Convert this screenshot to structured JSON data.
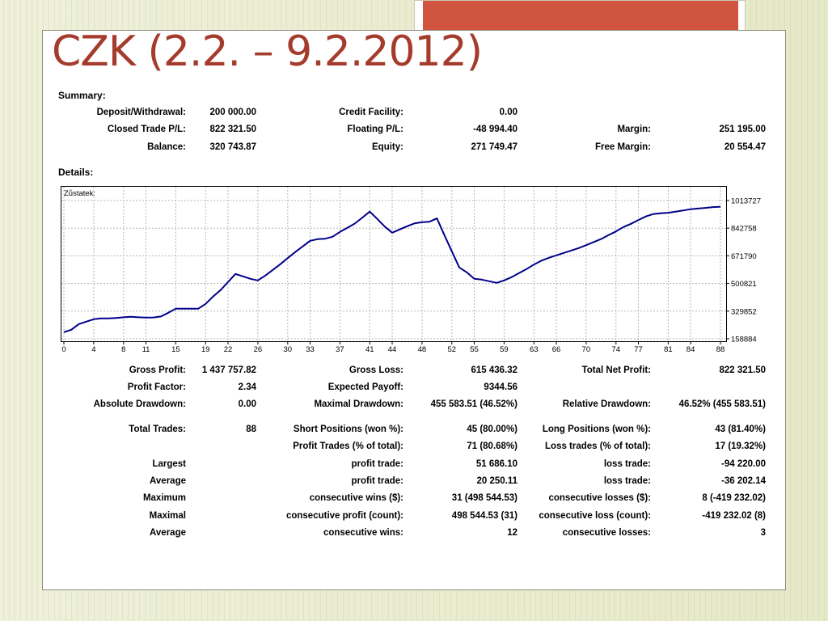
{
  "slide": {
    "title": "CZK (2.2. – 9.2.2012)",
    "accent_color": "#d05440",
    "title_color": "#a53b2c"
  },
  "summary": {
    "heading": "Summary:",
    "rows": [
      [
        {
          "label": "Deposit/Withdrawal:",
          "value": "200 000.00"
        },
        {
          "label": "Credit Facility:",
          "value": "0.00"
        },
        {
          "label": "",
          "value": ""
        }
      ],
      [
        {
          "label": "Closed Trade P/L:",
          "value": "822 321.50"
        },
        {
          "label": "Floating P/L:",
          "value": "-48 994.40"
        },
        {
          "label": "Margin:",
          "value": "251 195.00"
        }
      ],
      [
        {
          "label": "Balance:",
          "value": "320 743.87"
        },
        {
          "label": "Equity:",
          "value": "271 749.47"
        },
        {
          "label": "Free Margin:",
          "value": "20 554.47"
        }
      ]
    ]
  },
  "details_heading": "Details:",
  "chart_data": {
    "type": "line",
    "title": "Zůstatek:",
    "line_color": "#00008b",
    "grid": true,
    "y_ticks": [
      1013727,
      842758,
      671790,
      500821,
      329852,
      158884
    ],
    "x_ticks": [
      0,
      4,
      8,
      11,
      15,
      19,
      22,
      26,
      30,
      33,
      37,
      41,
      44,
      48,
      52,
      55,
      59,
      63,
      66,
      70,
      74,
      77,
      81,
      84,
      88
    ],
    "xlim": [
      0,
      88
    ],
    "ylim": [
      158884,
      1013727
    ],
    "series": [
      {
        "x": [
          0,
          1,
          2,
          3,
          4,
          5,
          6,
          7,
          8,
          9,
          10,
          11,
          12,
          13,
          14,
          15,
          16,
          17,
          18,
          19,
          20,
          21,
          22,
          23,
          24,
          25,
          26,
          27,
          28,
          29,
          30,
          31,
          32,
          33,
          34,
          35,
          36,
          37,
          38,
          39,
          40,
          41,
          42,
          43,
          44,
          45,
          46,
          47,
          48,
          49,
          50,
          51,
          52,
          53,
          54,
          55,
          56,
          57,
          58,
          59,
          60,
          61,
          62,
          63,
          64,
          65,
          66,
          67,
          68,
          69,
          70,
          71,
          72,
          73,
          74,
          75,
          76,
          77,
          78,
          79,
          80,
          81,
          82,
          83,
          84,
          85,
          86,
          87,
          88
        ],
        "y": [
          200000,
          215000,
          250000,
          265000,
          280000,
          285000,
          285000,
          288000,
          292000,
          295000,
          292000,
          290000,
          291000,
          297000,
          320000,
          345000,
          345000,
          345000,
          345000,
          375000,
          420000,
          460000,
          510000,
          560000,
          545000,
          530000,
          520000,
          550000,
          585000,
          620000,
          658000,
          695000,
          730000,
          765000,
          775000,
          778000,
          790000,
          820000,
          845000,
          872000,
          908000,
          945000,
          900000,
          853000,
          815000,
          835000,
          855000,
          873000,
          880000,
          883000,
          903000,
          800000,
          700000,
          600000,
          570000,
          530000,
          525000,
          515000,
          505000,
          520000,
          540000,
          565000,
          590000,
          618000,
          642000,
          660000,
          675000,
          690000,
          705000,
          720000,
          738000,
          757000,
          776000,
          800000,
          823000,
          850000,
          870000,
          893000,
          915000,
          930000,
          935000,
          938000,
          945000,
          952000,
          960000,
          964000,
          968000,
          973000,
          975000
        ]
      }
    ]
  },
  "stats": {
    "rows": [
      [
        {
          "label": "Gross Profit:",
          "value": "1 437 757.82"
        },
        {
          "label": "Gross Loss:",
          "value": "615 436.32"
        },
        {
          "label": "Total Net Profit:",
          "value": "822 321.50"
        }
      ],
      [
        {
          "label": "Profit Factor:",
          "value": "2.34"
        },
        {
          "label": "Expected Payoff:",
          "value": "9344.56"
        },
        {
          "label": "",
          "value": ""
        }
      ],
      [
        {
          "label": "Absolute Drawdown:",
          "value": "0.00"
        },
        {
          "label": "Maximal Drawdown:",
          "value": "455 583.51 (46.52%)"
        },
        {
          "label": "Relative Drawdown:",
          "value": "46.52% (455 583.51)"
        }
      ],
      [
        {
          "label": "Total Trades:",
          "value": "88"
        },
        {
          "label": "Short Positions (won %):",
          "value": "45 (80.00%)"
        },
        {
          "label": "Long Positions (won %):",
          "value": "43 (81.40%)"
        }
      ],
      [
        {
          "label": "",
          "value": ""
        },
        {
          "label": "Profit Trades (% of total):",
          "value": "71 (80.68%)"
        },
        {
          "label": "Loss trades (% of total):",
          "value": "17 (19.32%)"
        }
      ],
      [
        {
          "label": "Largest",
          "value": ""
        },
        {
          "label": "profit trade:",
          "value": "51 686.10"
        },
        {
          "label": "loss trade:",
          "value": "-94 220.00"
        }
      ],
      [
        {
          "label": "Average",
          "value": ""
        },
        {
          "label": "profit trade:",
          "value": "20 250.11"
        },
        {
          "label": "loss trade:",
          "value": "-36 202.14"
        }
      ],
      [
        {
          "label": "Maximum",
          "value": ""
        },
        {
          "label": "consecutive wins ($):",
          "value": "31 (498 544.53)"
        },
        {
          "label": "consecutive losses ($):",
          "value": "8 (-419 232.02)"
        }
      ],
      [
        {
          "label": "Maximal",
          "value": ""
        },
        {
          "label": "consecutive profit (count):",
          "value": "498 544.53 (31)"
        },
        {
          "label": "consecutive loss (count):",
          "value": "-419 232.02 (8)"
        }
      ],
      [
        {
          "label": "Average",
          "value": ""
        },
        {
          "label": "consecutive wins:",
          "value": "12"
        },
        {
          "label": "consecutive losses:",
          "value": "3"
        }
      ]
    ]
  }
}
